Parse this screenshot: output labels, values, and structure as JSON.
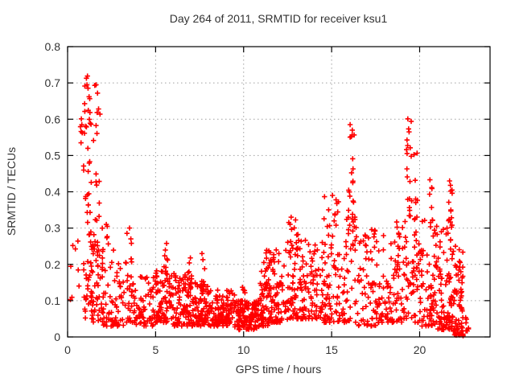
{
  "window": {
    "background": "#ffffff"
  },
  "chart_data": {
    "type": "scatter",
    "title": "Day 264 of 2011, SRMTID for receiver ksu1",
    "xlabel": "GPS time / hours",
    "ylabel": "SRMTID / TECUs",
    "xlim": [
      0,
      24
    ],
    "ylim": [
      0,
      0.8
    ],
    "xticks": {
      "values": [
        0,
        5,
        10,
        15,
        20
      ],
      "labels": [
        "0",
        "5",
        "10",
        "15",
        "20"
      ]
    },
    "yticks": {
      "values": [
        0,
        0.1,
        0.2,
        0.3,
        0.4,
        0.5,
        0.6,
        0.7,
        0.8
      ],
      "labels": [
        "0",
        "0.1",
        "0.2",
        "0.3",
        "0.4",
        "0.5",
        "0.6",
        "0.7",
        "0.8"
      ]
    },
    "grid": true,
    "grid_style": "dotted",
    "legend_position": "none",
    "marker": "plus",
    "colors": {
      "points": "#ff0000",
      "grid": "#a0a0a0",
      "axis": "#000000",
      "text": "#333333"
    },
    "approx_point_count": 1800,
    "x_data_extent_hours": [
      0.2,
      22.8
    ],
    "peak_value_tecus": 0.713,
    "peak_time_hours": 1.07,
    "density_bins": [
      {
        "t0": 0.15,
        "t1": 0.85,
        "n": 8,
        "v0": 0.08,
        "v1": 0.3,
        "bias": 1.3
      },
      {
        "t0": 0.72,
        "t1": 0.86,
        "n": 4,
        "v0": 0.52,
        "v1": 0.63,
        "bias": 0.9
      },
      {
        "t0": 0.9,
        "t1": 1.35,
        "n": 32,
        "v0": 0.28,
        "v1": 0.72,
        "bias": 0.85
      },
      {
        "t0": 0.9,
        "t1": 1.4,
        "n": 30,
        "v0": 0.05,
        "v1": 0.3,
        "bias": 1.2
      },
      {
        "t0": 1.45,
        "t1": 1.85,
        "n": 24,
        "v0": 0.22,
        "v1": 0.7,
        "bias": 0.95
      },
      {
        "t0": 1.35,
        "t1": 2.1,
        "n": 45,
        "v0": 0.04,
        "v1": 0.26,
        "bias": 1.3
      },
      {
        "t0": 1.9,
        "t1": 2.7,
        "n": 40,
        "v0": 0.03,
        "v1": 0.31,
        "bias": 1.9
      },
      {
        "t0": 2.7,
        "t1": 3.3,
        "n": 30,
        "v0": 0.03,
        "v1": 0.22,
        "bias": 1.7
      },
      {
        "t0": 3.3,
        "t1": 3.7,
        "n": 26,
        "v0": 0.04,
        "v1": 0.3,
        "bias": 1.7
      },
      {
        "t0": 3.7,
        "t1": 5.0,
        "n": 70,
        "v0": 0.03,
        "v1": 0.17,
        "bias": 1.5
      },
      {
        "t0": 5.0,
        "t1": 6.0,
        "n": 85,
        "v0": 0.04,
        "v1": 0.2,
        "bias": 1.6
      },
      {
        "t0": 5.5,
        "t1": 5.7,
        "n": 6,
        "v0": 0.14,
        "v1": 0.29,
        "bias": 1.0
      },
      {
        "t0": 6.0,
        "t1": 7.0,
        "n": 85,
        "v0": 0.03,
        "v1": 0.18,
        "bias": 1.5
      },
      {
        "t0": 6.8,
        "t1": 7.1,
        "n": 8,
        "v0": 0.12,
        "v1": 0.22,
        "bias": 1.0
      },
      {
        "t0": 7.0,
        "t1": 8.0,
        "n": 85,
        "v0": 0.03,
        "v1": 0.16,
        "bias": 1.5
      },
      {
        "t0": 7.6,
        "t1": 7.8,
        "n": 6,
        "v0": 0.12,
        "v1": 0.26,
        "bias": 1.0
      },
      {
        "t0": 8.0,
        "t1": 9.5,
        "n": 120,
        "v0": 0.03,
        "v1": 0.13,
        "bias": 1.4
      },
      {
        "t0": 9.5,
        "t1": 10.9,
        "n": 130,
        "v0": 0.02,
        "v1": 0.1,
        "bias": 1.3
      },
      {
        "t0": 9.9,
        "t1": 10.1,
        "n": 5,
        "v0": 0.09,
        "v1": 0.16,
        "bias": 1.0
      },
      {
        "t0": 10.9,
        "t1": 11.4,
        "n": 45,
        "v0": 0.03,
        "v1": 0.22,
        "bias": 1.5
      },
      {
        "t0": 11.15,
        "t1": 11.35,
        "n": 8,
        "v0": 0.1,
        "v1": 0.24,
        "bias": 1.0
      },
      {
        "t0": 11.4,
        "t1": 12.5,
        "n": 85,
        "v0": 0.04,
        "v1": 0.24,
        "bias": 1.8
      },
      {
        "t0": 12.5,
        "t1": 13.1,
        "n": 60,
        "v0": 0.05,
        "v1": 0.33,
        "bias": 1.7
      },
      {
        "t0": 13.1,
        "t1": 14.5,
        "n": 95,
        "v0": 0.05,
        "v1": 0.27,
        "bias": 1.8
      },
      {
        "t0": 14.5,
        "t1": 15.4,
        "n": 70,
        "v0": 0.04,
        "v1": 0.39,
        "bias": 2.0
      },
      {
        "t0": 15.4,
        "t1": 16.5,
        "n": 55,
        "v0": 0.04,
        "v1": 0.33,
        "bias": 1.6
      },
      {
        "t0": 15.95,
        "t1": 16.35,
        "n": 22,
        "v0": 0.28,
        "v1": 0.58,
        "bias": 1.1
      },
      {
        "t0": 16.5,
        "t1": 17.5,
        "n": 60,
        "v0": 0.03,
        "v1": 0.3,
        "bias": 1.9
      },
      {
        "t0": 17.5,
        "t1": 18.6,
        "n": 60,
        "v0": 0.04,
        "v1": 0.28,
        "bias": 1.8
      },
      {
        "t0": 18.6,
        "t1": 19.2,
        "n": 45,
        "v0": 0.04,
        "v1": 0.33,
        "bias": 1.7
      },
      {
        "t0": 19.25,
        "t1": 19.55,
        "n": 18,
        "v0": 0.25,
        "v1": 0.6,
        "bias": 1.0
      },
      {
        "t0": 19.2,
        "t1": 20.1,
        "n": 50,
        "v0": 0.04,
        "v1": 0.3,
        "bias": 1.6
      },
      {
        "t0": 19.6,
        "t1": 19.95,
        "n": 10,
        "v0": 0.28,
        "v1": 0.55,
        "bias": 1.0
      },
      {
        "t0": 20.1,
        "t1": 21.0,
        "n": 70,
        "v0": 0.03,
        "v1": 0.33,
        "bias": 1.8
      },
      {
        "t0": 20.55,
        "t1": 20.75,
        "n": 8,
        "v0": 0.26,
        "v1": 0.47,
        "bias": 1.0
      },
      {
        "t0": 21.0,
        "t1": 21.9,
        "n": 85,
        "v0": 0.02,
        "v1": 0.3,
        "bias": 1.9
      },
      {
        "t0": 21.6,
        "t1": 21.85,
        "n": 12,
        "v0": 0.3,
        "v1": 0.43,
        "bias": 1.0
      },
      {
        "t0": 21.9,
        "t1": 22.5,
        "n": 70,
        "v0": 0.005,
        "v1": 0.25,
        "bias": 2.2
      },
      {
        "t0": 22.4,
        "t1": 22.8,
        "n": 12,
        "v0": 0.002,
        "v1": 0.08,
        "bias": 1.5
      }
    ],
    "extreme_points": [
      [
        1.07,
        0.713
      ],
      [
        1.1,
        0.695
      ],
      [
        1.62,
        0.695
      ],
      [
        1.7,
        0.672
      ],
      [
        0.78,
        0.601
      ],
      [
        0.81,
        0.585
      ],
      [
        16.05,
        0.585
      ],
      [
        16.12,
        0.552
      ],
      [
        19.33,
        0.601
      ],
      [
        19.4,
        0.565
      ],
      [
        2.2,
        0.31
      ],
      [
        3.52,
        0.3
      ],
      [
        12.7,
        0.33
      ],
      [
        15.05,
        0.39
      ],
      [
        21.7,
        0.43
      ],
      [
        21.75,
        0.418
      ]
    ]
  }
}
